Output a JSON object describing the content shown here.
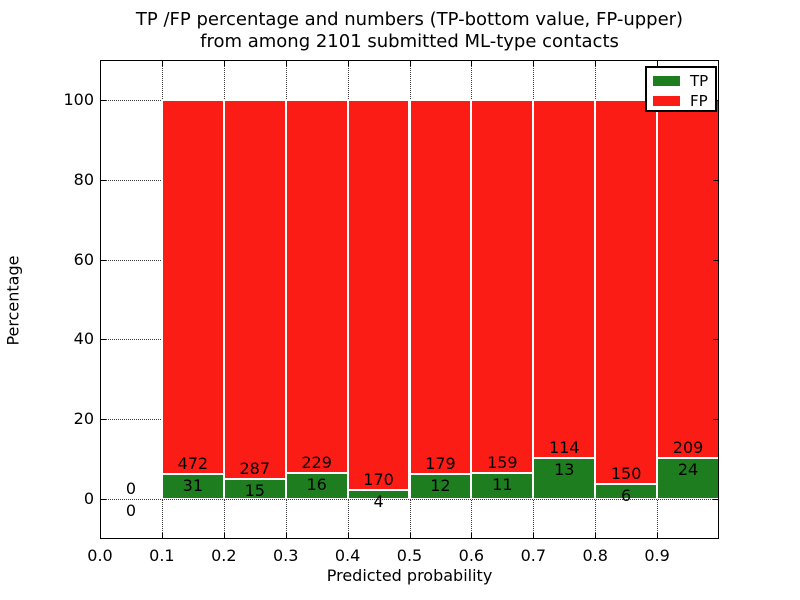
{
  "figure": {
    "title_line1": "TP /FP percentage and numbers (TP-bottom value, FP-upper)",
    "title_line2": "from among 2101 submitted ML-type contacts"
  },
  "chart_data": {
    "type": "bar",
    "stacked": true,
    "normalized": "each bar scaled to 100%",
    "title": "TP /FP percentage and numbers (TP-bottom value, FP-upper)\nfrom among 2101 submitted ML-type contacts",
    "xlabel": "Predicted probability",
    "ylabel": "Percentage",
    "xlim": [
      0.0,
      1.0
    ],
    "ylim": [
      -10,
      110
    ],
    "xticks": [
      "0.0",
      "0.1",
      "0.2",
      "0.3",
      "0.4",
      "0.5",
      "0.6",
      "0.7",
      "0.8",
      "0.9"
    ],
    "yticks": [
      0,
      20,
      40,
      60,
      80,
      100
    ],
    "grid": "dotted, both axes",
    "bin_width": 0.1,
    "bin_starts": [
      0.0,
      0.1,
      0.2,
      0.3,
      0.4,
      0.5,
      0.6,
      0.7,
      0.8,
      0.9
    ],
    "series": [
      {
        "name": "TP",
        "color": "#1e7d1e",
        "counts": [
          0,
          31,
          15,
          16,
          4,
          12,
          11,
          13,
          6,
          24
        ]
      },
      {
        "name": "FP",
        "color": "#fb1d15",
        "counts": [
          0,
          472,
          287,
          229,
          170,
          179,
          159,
          114,
          150,
          209
        ]
      }
    ],
    "legend": {
      "position": "upper right",
      "entries": [
        "TP",
        "FP"
      ]
    }
  }
}
